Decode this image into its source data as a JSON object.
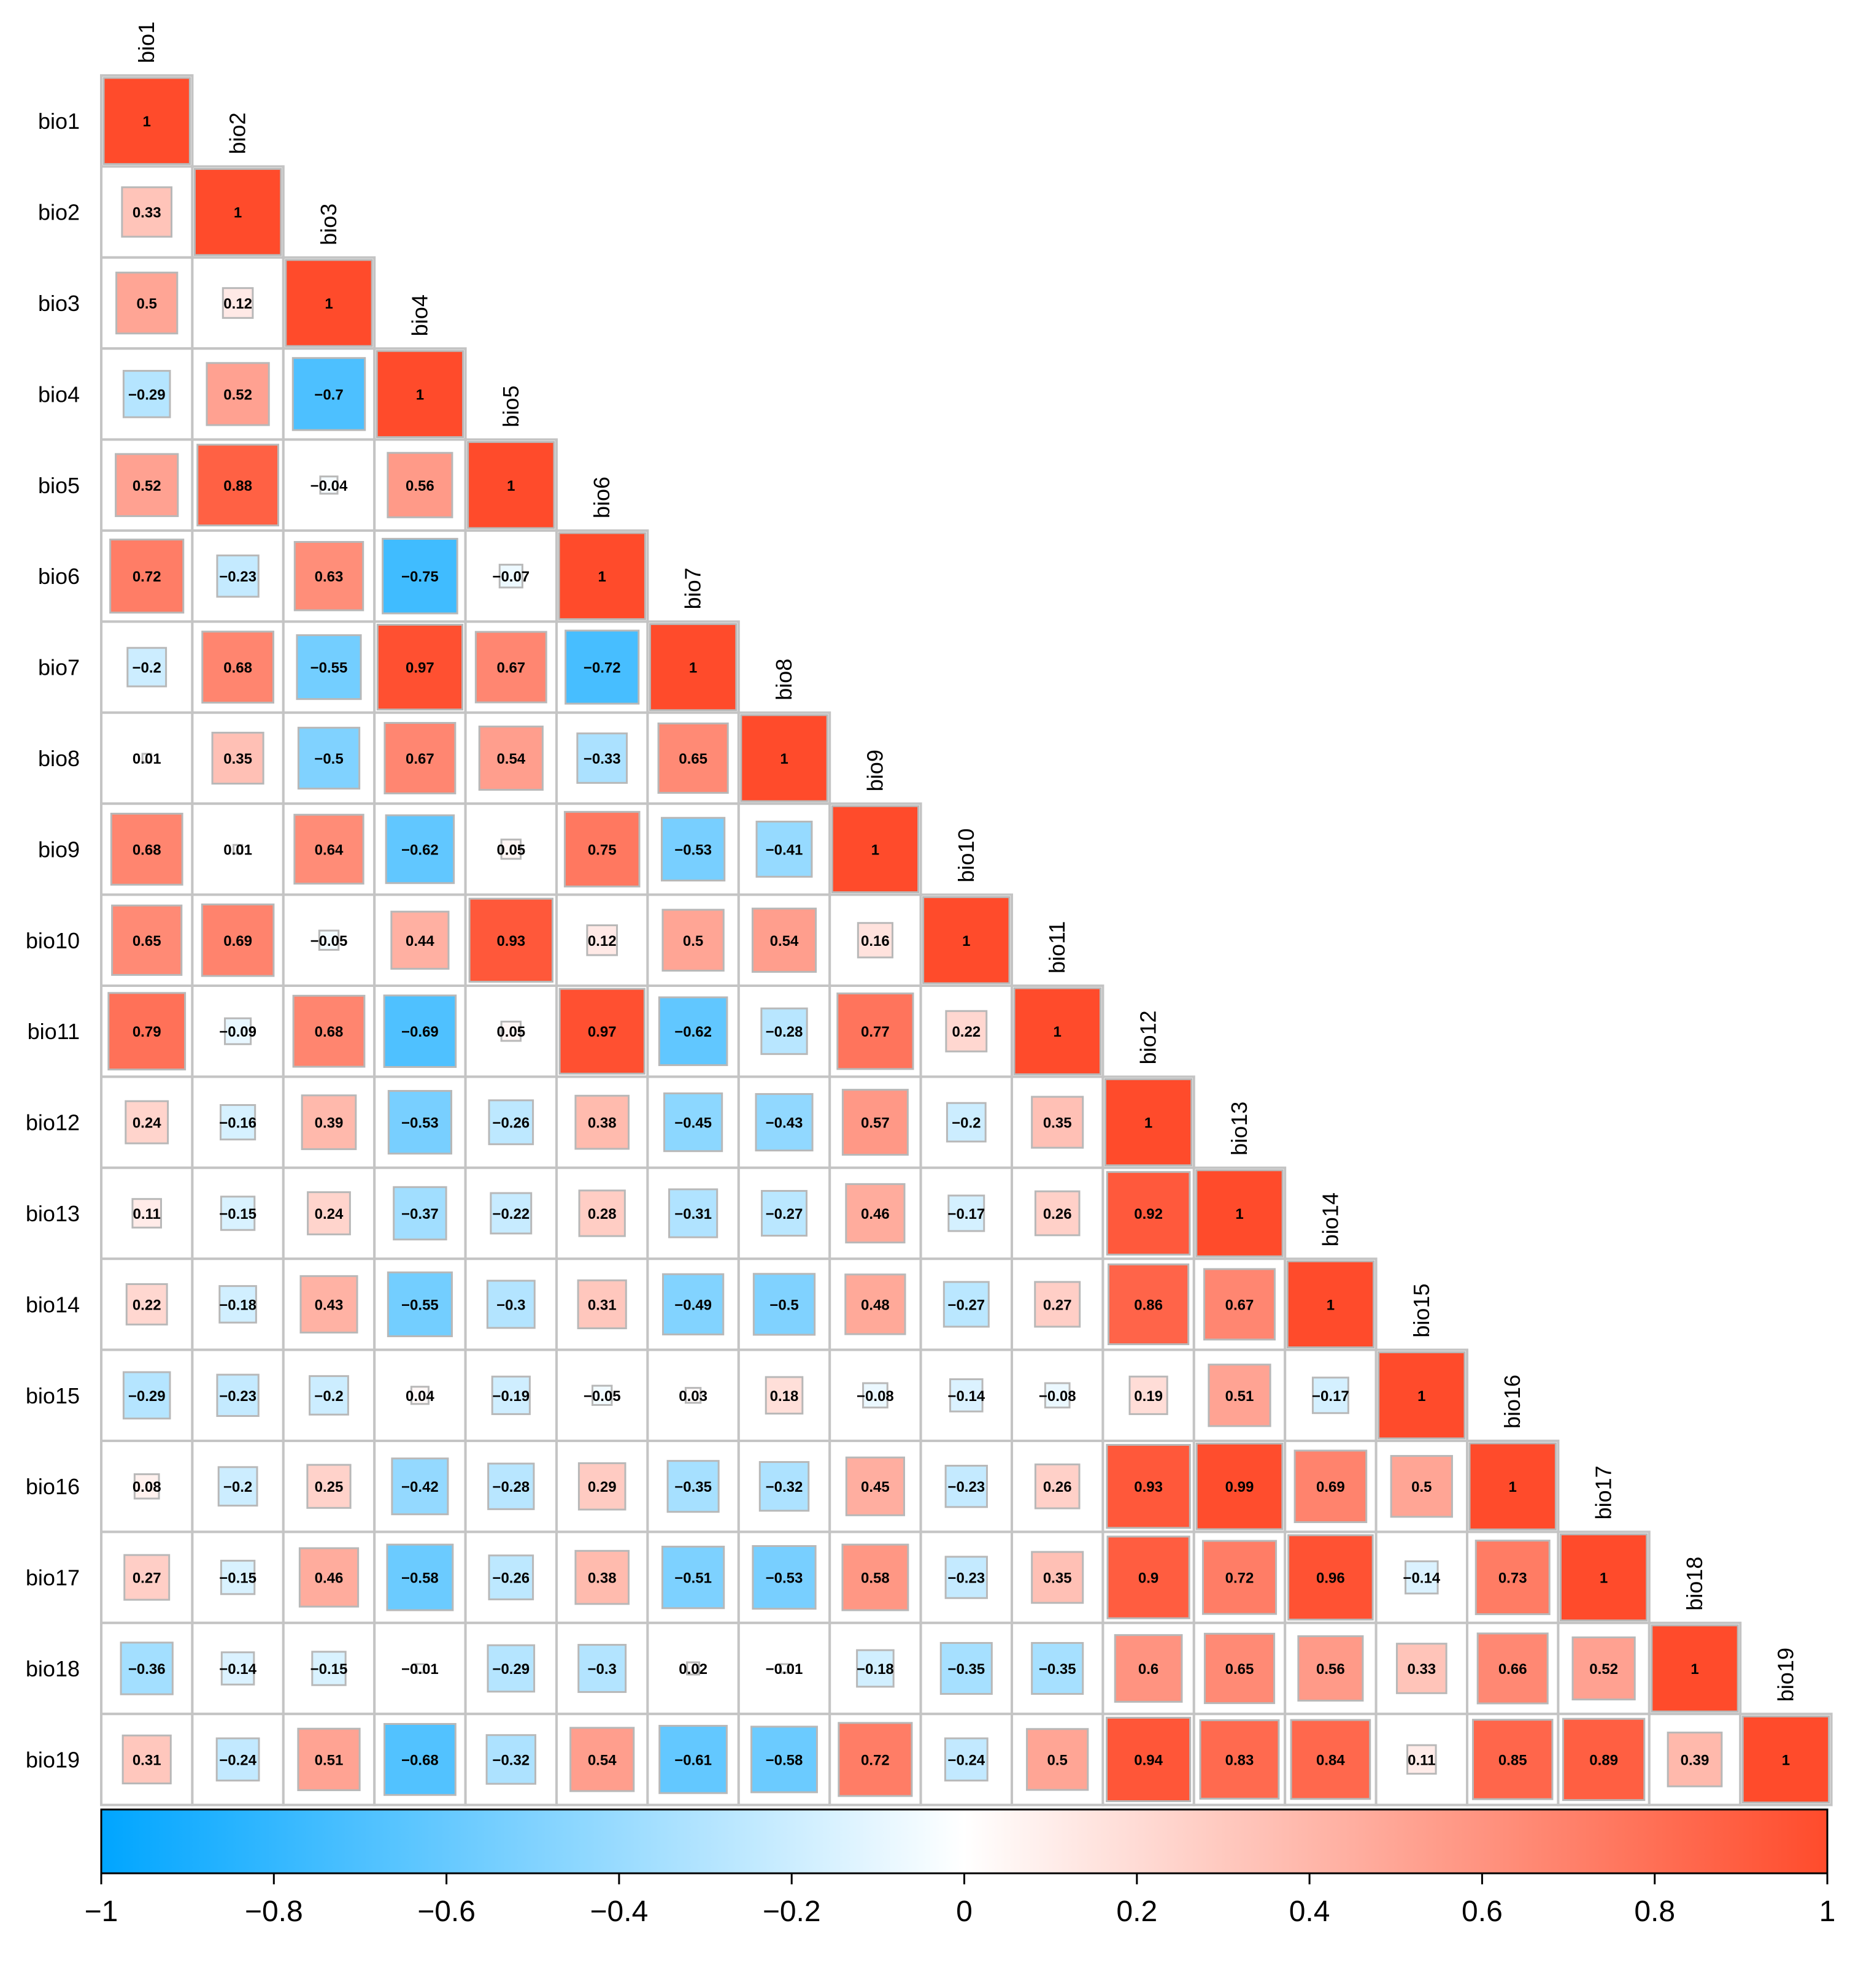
{
  "chart_data": {
    "type": "heatmap",
    "variables": [
      "bio1",
      "bio2",
      "bio3",
      "bio4",
      "bio5",
      "bio6",
      "bio7",
      "bio8",
      "bio9",
      "bio10",
      "bio11",
      "bio12",
      "bio13",
      "bio14",
      "bio15",
      "bio16",
      "bio17",
      "bio18",
      "bio19"
    ],
    "matrix_lower": [
      [
        1
      ],
      [
        0.33,
        1
      ],
      [
        0.5,
        0.12,
        1
      ],
      [
        -0.29,
        0.52,
        -0.7,
        1
      ],
      [
        0.52,
        0.88,
        -0.04,
        0.56,
        1
      ],
      [
        0.72,
        -0.23,
        0.63,
        -0.75,
        -0.07,
        1
      ],
      [
        -0.2,
        0.68,
        -0.55,
        0.97,
        0.67,
        -0.72,
        1
      ],
      [
        0.01,
        0.35,
        -0.5,
        0.67,
        0.54,
        -0.33,
        0.65,
        1
      ],
      [
        0.68,
        0.01,
        0.64,
        -0.62,
        0.05,
        0.75,
        -0.53,
        -0.41,
        1
      ],
      [
        0.65,
        0.69,
        -0.05,
        0.44,
        0.93,
        0.12,
        0.5,
        0.54,
        0.16,
        1
      ],
      [
        0.79,
        -0.09,
        0.68,
        -0.69,
        0.05,
        0.97,
        -0.62,
        -0.28,
        0.77,
        0.22,
        1
      ],
      [
        0.24,
        -0.16,
        0.39,
        -0.53,
        -0.26,
        0.38,
        -0.45,
        -0.43,
        0.57,
        -0.2,
        0.35,
        1
      ],
      [
        0.11,
        -0.15,
        0.24,
        -0.37,
        -0.22,
        0.28,
        -0.31,
        -0.27,
        0.46,
        -0.17,
        0.26,
        0.92,
        1
      ],
      [
        0.22,
        -0.18,
        0.43,
        -0.55,
        -0.3,
        0.31,
        -0.49,
        -0.5,
        0.48,
        -0.27,
        0.27,
        0.86,
        0.67,
        1
      ],
      [
        -0.29,
        -0.23,
        -0.2,
        0.04,
        -0.19,
        -0.05,
        0.03,
        0.18,
        -0.08,
        -0.14,
        -0.08,
        0.19,
        0.51,
        -0.17,
        1
      ],
      [
        0.08,
        -0.2,
        0.25,
        -0.42,
        -0.28,
        0.29,
        -0.35,
        -0.32,
        0.45,
        -0.23,
        0.26,
        0.93,
        0.99,
        0.69,
        0.5,
        1
      ],
      [
        0.27,
        -0.15,
        0.46,
        -0.58,
        -0.26,
        0.38,
        -0.51,
        -0.53,
        0.58,
        -0.23,
        0.35,
        0.9,
        0.72,
        0.96,
        -0.14,
        0.73,
        1
      ],
      [
        -0.36,
        -0.14,
        -0.15,
        -0.01,
        -0.29,
        -0.3,
        0.02,
        -0.01,
        -0.18,
        -0.35,
        -0.35,
        0.6,
        0.65,
        0.56,
        0.33,
        0.66,
        0.52,
        1
      ],
      [
        0.31,
        -0.24,
        0.51,
        -0.68,
        -0.32,
        0.54,
        -0.61,
        -0.58,
        0.72,
        -0.24,
        0.5,
        0.94,
        0.83,
        0.84,
        0.11,
        0.85,
        0.89,
        0.39,
        1
      ]
    ],
    "value_labels": [
      [
        "1"
      ],
      [
        "0.33",
        "1"
      ],
      [
        "0.5",
        "0.12",
        "1"
      ],
      [
        "−0.29",
        "0.52",
        "−0.7",
        "1"
      ],
      [
        "0.52",
        "0.88",
        "−0.04",
        "0.56",
        "1"
      ],
      [
        "0.72",
        "−0.23",
        "0.63",
        "−0.75",
        "−0.07",
        "1"
      ],
      [
        "−0.2",
        "0.68",
        "−0.55",
        "0.97",
        "0.67",
        "−0.72",
        "1"
      ],
      [
        "0.01",
        "0.35",
        "−0.5",
        "0.67",
        "0.54",
        "−0.33",
        "0.65",
        "1"
      ],
      [
        "0.68",
        "0.01",
        "0.64",
        "−0.62",
        "0.05",
        "0.75",
        "−0.53",
        "−0.41",
        "1"
      ],
      [
        "0.65",
        "0.69",
        "−0.05",
        "0.44",
        "0.93",
        "0.12",
        "0.5",
        "0.54",
        "0.16",
        "1"
      ],
      [
        "0.79",
        "−0.09",
        "0.68",
        "−0.69",
        "0.05",
        "0.97",
        "−0.62",
        "−0.28",
        "0.77",
        "0.22",
        "1"
      ],
      [
        "0.24",
        "−0.16",
        "0.39",
        "−0.53",
        "−0.26",
        "0.38",
        "−0.45",
        "−0.43",
        "0.57",
        "−0.2",
        "0.35",
        "1"
      ],
      [
        "0.11",
        "−0.15",
        "0.24",
        "−0.37",
        "−0.22",
        "0.28",
        "−0.31",
        "−0.27",
        "0.46",
        "−0.17",
        "0.26",
        "0.92",
        "1"
      ],
      [
        "0.22",
        "−0.18",
        "0.43",
        "−0.55",
        "−0.3",
        "0.31",
        "−0.49",
        "−0.5",
        "0.48",
        "−0.27",
        "0.27",
        "0.86",
        "0.67",
        "1"
      ],
      [
        "−0.29",
        "−0.23",
        "−0.2",
        "0.04",
        "−0.19",
        "−0.05",
        "0.03",
        "0.18",
        "−0.08",
        "−0.14",
        "−0.08",
        "0.19",
        "0.51",
        "−0.17",
        "1"
      ],
      [
        "0.08",
        "−0.2",
        "0.25",
        "−0.42",
        "−0.28",
        "0.29",
        "−0.35",
        "−0.32",
        "0.45",
        "−0.23",
        "0.26",
        "0.93",
        "0.99",
        "0.69",
        "0.5",
        "1"
      ],
      [
        "0.27",
        "−0.15",
        "0.46",
        "−0.58",
        "−0.26",
        "0.38",
        "−0.51",
        "−0.53",
        "0.58",
        "−0.23",
        "0.35",
        "0.9",
        "0.72",
        "0.96",
        "−0.14",
        "0.73",
        "1"
      ],
      [
        "−0.36",
        "−0.14",
        "−0.15",
        "−0.01",
        "−0.29",
        "−0.3",
        "0.02",
        "−0.01",
        "−0.18",
        "−0.35",
        "−0.35",
        "0.6",
        "0.65",
        "0.56",
        "0.33",
        "0.66",
        "0.52",
        "1"
      ],
      [
        "0.31",
        "−0.24",
        "0.51",
        "−0.68",
        "−0.32",
        "0.54",
        "−0.61",
        "−0.58",
        "0.72",
        "−0.24",
        "0.5",
        "0.94",
        "0.83",
        "0.84",
        "0.11",
        "0.85",
        "0.89",
        "0.39",
        "1"
      ]
    ],
    "colorbar": {
      "range": [
        -1,
        1
      ],
      "ticks": [
        -1,
        -0.8,
        -0.6,
        -0.4,
        -0.2,
        0,
        0.2,
        0.4,
        0.6,
        0.8,
        1
      ],
      "tick_labels": [
        "−1",
        "−0.8",
        "−0.6",
        "−0.4",
        "−0.2",
        "0",
        "0.2",
        "0.4",
        "0.6",
        "0.8",
        "1"
      ],
      "placement": "bottom"
    },
    "colors": {
      "negative": "#00A5FF",
      "neutral": "#FFFFFF",
      "positive": "#FF4B2B",
      "cell_border": "#C4C4C4",
      "square_border": "#B8B8B8"
    },
    "title": "",
    "xlabel": "",
    "ylabel": ""
  }
}
